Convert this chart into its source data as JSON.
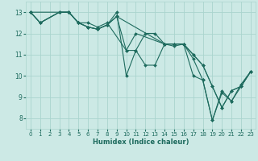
{
  "title": "",
  "xlabel": "Humidex (Indice chaleur)",
  "ylabel": "",
  "bg_color": "#cce9e5",
  "grid_color": "#aad4ce",
  "line_color": "#1e6b5e",
  "xlim": [
    -0.5,
    23.5
  ],
  "ylim": [
    7.5,
    13.5
  ],
  "xticks": [
    0,
    1,
    2,
    3,
    4,
    5,
    6,
    7,
    8,
    9,
    10,
    11,
    12,
    13,
    14,
    15,
    16,
    17,
    18,
    19,
    20,
    21,
    22,
    23
  ],
  "yticks": [
    8,
    9,
    10,
    11,
    12,
    13
  ],
  "lines": [
    {
      "x": [
        0,
        1,
        3,
        4,
        5,
        6,
        7,
        8,
        9,
        10,
        11,
        12,
        13,
        14,
        15,
        16,
        17,
        18,
        19,
        20,
        21,
        22,
        23
      ],
      "y": [
        13,
        12.5,
        13,
        13,
        12.5,
        12.3,
        12.2,
        12.4,
        13.0,
        10.0,
        11.2,
        10.5,
        10.5,
        11.5,
        11.4,
        11.5,
        10.8,
        9.8,
        7.9,
        9.3,
        8.8,
        9.6,
        10.2
      ]
    },
    {
      "x": [
        0,
        4,
        5,
        6,
        7,
        8,
        10,
        11,
        14,
        15,
        16,
        17,
        18,
        19,
        20,
        21,
        22,
        23
      ],
      "y": [
        13,
        13.0,
        12.5,
        12.5,
        12.3,
        12.5,
        11.2,
        12.0,
        11.5,
        11.5,
        11.5,
        11.0,
        10.5,
        9.5,
        8.5,
        9.3,
        9.5,
        10.2
      ]
    },
    {
      "x": [
        0,
        1,
        3,
        4,
        5,
        6,
        7,
        8,
        9,
        10,
        11,
        12,
        13,
        14,
        15,
        16,
        17,
        18,
        19,
        20,
        21,
        22,
        23
      ],
      "y": [
        13,
        12.5,
        13,
        13,
        12.5,
        12.3,
        12.2,
        12.4,
        12.8,
        11.2,
        11.2,
        12.0,
        12.0,
        11.5,
        11.5,
        11.5,
        10.0,
        9.8,
        7.9,
        9.2,
        8.8,
        9.5,
        10.2
      ]
    },
    {
      "x": [
        0,
        1,
        3,
        4,
        5,
        6,
        7,
        8,
        9,
        14,
        15,
        16,
        17,
        18,
        19,
        20,
        21,
        22,
        23
      ],
      "y": [
        13,
        12.5,
        13,
        13,
        12.5,
        12.3,
        12.2,
        12.4,
        12.8,
        11.5,
        11.5,
        11.5,
        11.0,
        10.5,
        9.5,
        8.5,
        9.3,
        9.5,
        10.2
      ]
    }
  ]
}
